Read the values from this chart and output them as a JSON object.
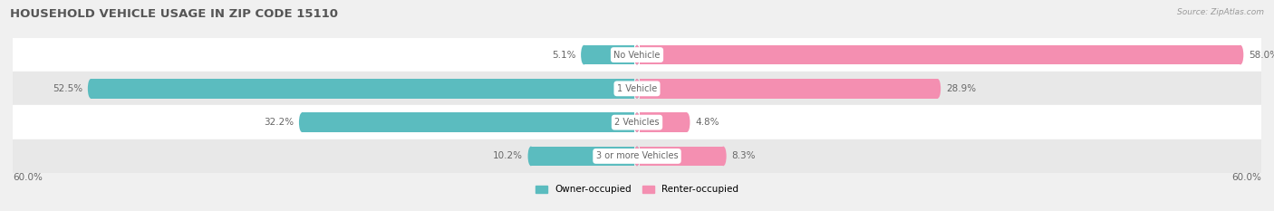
{
  "title": "HOUSEHOLD VEHICLE USAGE IN ZIP CODE 15110",
  "source": "Source: ZipAtlas.com",
  "categories": [
    "No Vehicle",
    "1 Vehicle",
    "2 Vehicles",
    "3 or more Vehicles"
  ],
  "owner_values": [
    5.1,
    52.5,
    32.2,
    10.2
  ],
  "renter_values": [
    58.0,
    28.9,
    4.8,
    8.3
  ],
  "owner_color": "#5bbcbf",
  "renter_color": "#f48fb1",
  "owner_label": "Owner-occupied",
  "renter_label": "Renter-occupied",
  "axis_limit": 60.0,
  "axis_label_left": "60.0%",
  "axis_label_right": "60.0%",
  "bar_height": 0.58,
  "background_color": "#f0f0f0",
  "row_colors": [
    "#ffffff",
    "#e8e8e8",
    "#ffffff",
    "#e8e8e8"
  ],
  "title_fontsize": 9.5,
  "label_fontsize": 7.5,
  "category_fontsize": 7.0,
  "source_fontsize": 6.5,
  "text_color": "#666666",
  "source_color": "#999999"
}
